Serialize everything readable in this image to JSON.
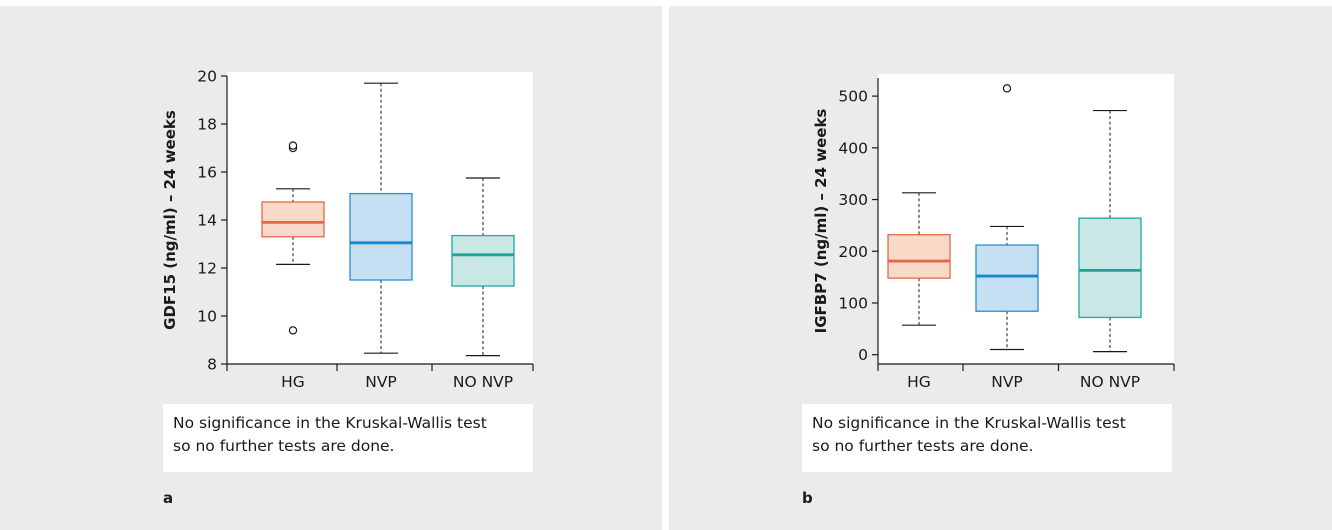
{
  "chart_data": [
    {
      "type": "boxplot",
      "panel_label": "a",
      "ylabel": "GDF15 (ng/ml) – 24 weeks",
      "ylim": [
        8,
        20
      ],
      "yticks": [
        8,
        10,
        12,
        14,
        16,
        18,
        20
      ],
      "categories": [
        "HG",
        "NVP",
        "NO NVP"
      ],
      "boxes": [
        {
          "name": "HG",
          "whisker_low": 12.15,
          "q1": 13.3,
          "median": 13.9,
          "q3": 14.75,
          "whisker_high": 15.3,
          "outliers": [
            17.0,
            17.1,
            9.4
          ],
          "fill": "#f8d9c8",
          "stroke": "#e06a45",
          "median_color": "#e06a45"
        },
        {
          "name": "NVP",
          "whisker_low": 8.45,
          "q1": 11.5,
          "median": 13.05,
          "q3": 15.1,
          "whisker_high": 19.7,
          "outliers": [],
          "fill": "#c5e0f3",
          "stroke": "#2a8fd0",
          "median_color": "#1a86cc"
        },
        {
          "name": "NO NVP",
          "whisker_low": 8.35,
          "q1": 11.25,
          "median": 12.55,
          "q3": 13.35,
          "whisker_high": 15.75,
          "outliers": [],
          "fill": "#c8e7e5",
          "stroke": "#24a79f",
          "median_color": "#1ea39a"
        }
      ]
    },
    {
      "type": "boxplot",
      "panel_label": "b",
      "ylabel": "IGFBP7 (ng/ml) – 24 weeks",
      "ylim": [
        -18,
        535
      ],
      "yticks": [
        0,
        100,
        200,
        300,
        400,
        500
      ],
      "categories": [
        "HG",
        "NVP",
        "NO NVP"
      ],
      "boxes": [
        {
          "name": "HG",
          "whisker_low": 57,
          "q1": 148,
          "median": 181,
          "q3": 232,
          "whisker_high": 313,
          "outliers": [],
          "fill": "#f8d9c8",
          "stroke": "#e06a45",
          "median_color": "#e06a45"
        },
        {
          "name": "NVP",
          "whisker_low": 10,
          "q1": 84,
          "median": 152,
          "q3": 212,
          "whisker_high": 248,
          "outliers": [
            515
          ],
          "fill": "#c5e0f3",
          "stroke": "#2a8fd0",
          "median_color": "#1a86cc"
        },
        {
          "name": "NO NVP",
          "whisker_low": 6,
          "q1": 72,
          "median": 163,
          "q3": 264,
          "whisker_high": 472,
          "outliers": [],
          "fill": "#c8e7e5",
          "stroke": "#24a79f",
          "median_color": "#1ea39a"
        }
      ]
    }
  ],
  "notes": {
    "a": {
      "line1": "No significance in the Kruskal-Wallis test",
      "line2": "so no further tests are done."
    },
    "b": {
      "line1": "No significance in the Kruskal-Wallis test",
      "line2": "so no further tests are done."
    }
  },
  "panel_labels": {
    "a": "a",
    "b": "b"
  },
  "colors": {
    "background": "#ebebeb",
    "plot_area": "#ffffff",
    "axis": "#1a1a1a"
  }
}
